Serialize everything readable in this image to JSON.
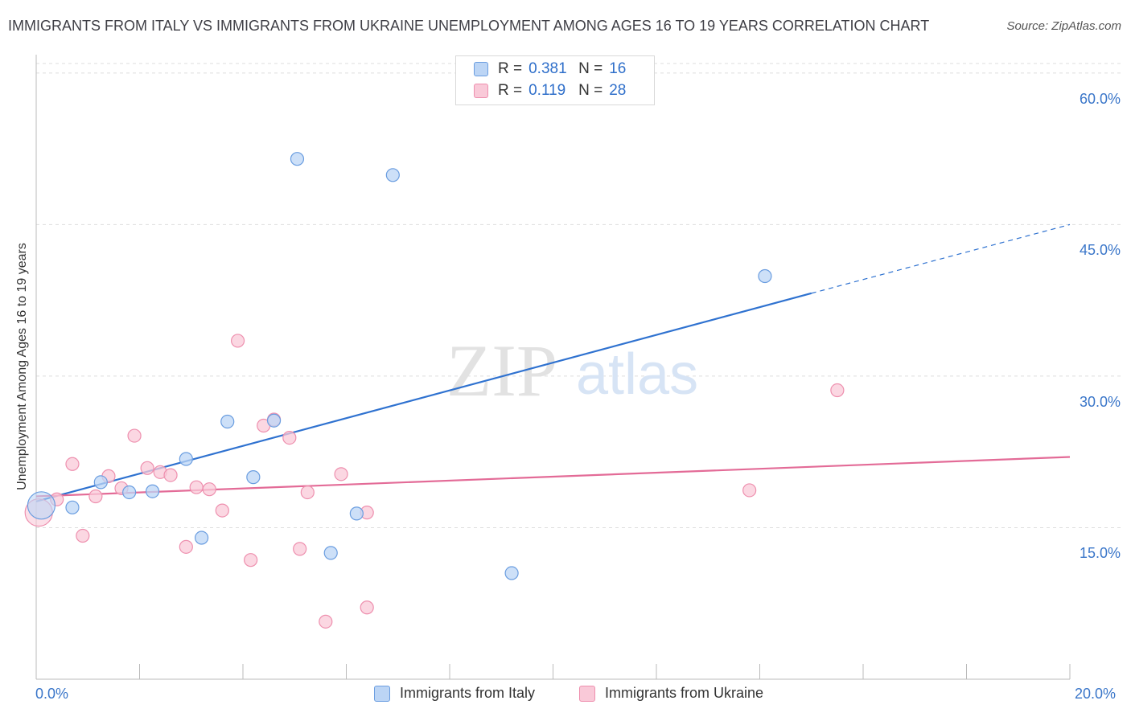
{
  "title": "IMMIGRANTS FROM ITALY VS IMMIGRANTS FROM UKRAINE UNEMPLOYMENT AMONG AGES 16 TO 19 YEARS CORRELATION CHART",
  "source": "Source: ZipAtlas.com",
  "watermark": {
    "zip": "ZIP",
    "atlas": "atlas"
  },
  "legend_stats": [
    {
      "r_label": "R =",
      "r_value": "0.381",
      "n_label": "N =",
      "n_value": "16"
    },
    {
      "r_label": "R =",
      "r_value": "0.119",
      "n_label": "N =",
      "n_value": "28"
    }
  ],
  "colors": {
    "italy_fill": "#bcd5f5",
    "italy_stroke": "#6a9de0",
    "italy_line": "#2f72d0",
    "ukraine_fill": "#f9c9d8",
    "ukraine_stroke": "#ee8fae",
    "ukraine_line": "#e36b97",
    "axis_text": "#3a76c9",
    "grid": "#dedede"
  },
  "chart_data": {
    "type": "scatter",
    "title": "IMMIGRANTS FROM ITALY VS IMMIGRANTS FROM UKRAINE UNEMPLOYMENT AMONG AGES 16 TO 19 YEARS CORRELATION CHART",
    "xlabel": "",
    "ylabel": "Unemployment Among Ages 16 to 19 years",
    "xlim": [
      0,
      20
    ],
    "ylim": [
      0,
      61.5
    ],
    "x_tick_labels": [
      "0.0%",
      "20.0%"
    ],
    "y_ticks": [
      15,
      30,
      45,
      60
    ],
    "y_tick_labels": [
      "15.0%",
      "30.0%",
      "45.0%",
      "60.0%"
    ],
    "grid": true,
    "legend_position": "bottom",
    "series": [
      {
        "name": "Immigrants from Italy",
        "r": 0.381,
        "n": 16,
        "points": [
          {
            "x": 0.1,
            "y": 17.2,
            "big": true
          },
          {
            "x": 0.7,
            "y": 17.0
          },
          {
            "x": 1.25,
            "y": 19.5
          },
          {
            "x": 1.8,
            "y": 18.5
          },
          {
            "x": 2.25,
            "y": 18.6
          },
          {
            "x": 2.9,
            "y": 21.8
          },
          {
            "x": 3.2,
            "y": 14.0
          },
          {
            "x": 3.7,
            "y": 25.5
          },
          {
            "x": 4.2,
            "y": 20.0
          },
          {
            "x": 4.6,
            "y": 25.6
          },
          {
            "x": 5.05,
            "y": 51.5
          },
          {
            "x": 5.7,
            "y": 12.5
          },
          {
            "x": 6.2,
            "y": 16.4
          },
          {
            "x": 6.9,
            "y": 49.9
          },
          {
            "x": 9.2,
            "y": 10.5
          },
          {
            "x": 14.1,
            "y": 39.9
          }
        ],
        "trend": {
          "x0": 0,
          "y0": 17.6,
          "x1": 15.0,
          "y1": 38.2,
          "dashed_to_x": 20.0,
          "dashed_to_y": 45.0
        }
      },
      {
        "name": "Immigrants from Ukraine",
        "r": 0.119,
        "n": 28,
        "points": [
          {
            "x": 0.05,
            "y": 16.5,
            "big": true
          },
          {
            "x": 0.4,
            "y": 17.8
          },
          {
            "x": 0.7,
            "y": 21.3
          },
          {
            "x": 0.9,
            "y": 14.2
          },
          {
            "x": 1.15,
            "y": 18.1
          },
          {
            "x": 1.4,
            "y": 20.1
          },
          {
            "x": 1.65,
            "y": 18.9
          },
          {
            "x": 1.9,
            "y": 24.1
          },
          {
            "x": 2.15,
            "y": 20.9
          },
          {
            "x": 2.4,
            "y": 20.5
          },
          {
            "x": 2.6,
            "y": 20.2
          },
          {
            "x": 2.9,
            "y": 13.1
          },
          {
            "x": 3.1,
            "y": 19.0
          },
          {
            "x": 3.35,
            "y": 18.8
          },
          {
            "x": 3.6,
            "y": 16.7
          },
          {
            "x": 3.9,
            "y": 33.5
          },
          {
            "x": 4.15,
            "y": 11.8
          },
          {
            "x": 4.4,
            "y": 25.1
          },
          {
            "x": 4.6,
            "y": 25.7
          },
          {
            "x": 4.9,
            "y": 23.9
          },
          {
            "x": 5.1,
            "y": 12.9
          },
          {
            "x": 5.25,
            "y": 18.5
          },
          {
            "x": 5.6,
            "y": 5.7
          },
          {
            "x": 5.9,
            "y": 20.3
          },
          {
            "x": 6.4,
            "y": 16.5
          },
          {
            "x": 6.4,
            "y": 7.1
          },
          {
            "x": 13.8,
            "y": 18.7
          },
          {
            "x": 15.5,
            "y": 28.6
          }
        ],
        "trend": {
          "x0": 0,
          "y0": 18.1,
          "x1": 20.0,
          "y1": 22.0
        }
      }
    ]
  }
}
